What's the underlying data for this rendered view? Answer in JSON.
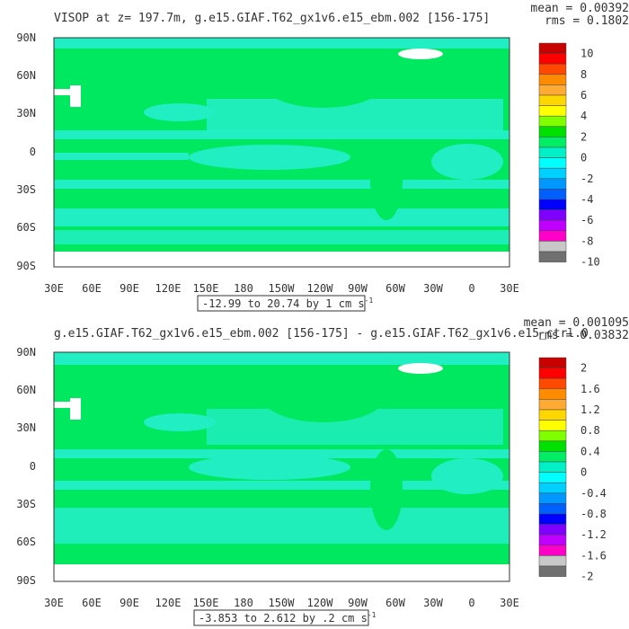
{
  "panels": [
    {
      "title": "VISOP at z= 197.7m, g.e15.GIAF.T62_gx1v6.e15_ebm.002 [156-175]",
      "stats_mean": "mean = 0.00392",
      "stats_rms": "rms = 0.1802",
      "range_text": "-12.99 to 20.74 by 1 cm s",
      "range_exponent": "-1",
      "colorbar_labels": [
        "10",
        "8",
        "6",
        "4",
        "2",
        "0",
        "-2",
        "-4",
        "-6",
        "-8",
        "-10"
      ]
    },
    {
      "title": "g.e15.GIAF.T62_gx1v6.e15_ebm.002 [156-175] - g.e15.GIAF.T62_gx1v6.e15_ctrl.0",
      "stats_mean": "mean = 0.001095",
      "stats_rms": "rms = 0.03832",
      "range_text": "-3.853 to 2.612 by .2 cm s",
      "range_exponent": "-1",
      "colorbar_labels": [
        "2",
        "1.6",
        "1.2",
        "0.8",
        "0.4",
        "0",
        "-0.4",
        "-0.8",
        "-1.2",
        "-1.6",
        "-2"
      ]
    }
  ],
  "lat_labels": [
    "90N",
    "60N",
    "30N",
    "0",
    "30S",
    "60S",
    "90S"
  ],
  "lon_labels": [
    "30E",
    "60E",
    "90E",
    "120E",
    "150E",
    "180",
    "150W",
    "120W",
    "90W",
    "60W",
    "30W",
    "0",
    "30E"
  ],
  "colorbar_colors": [
    "#c80000",
    "#ff0000",
    "#ff4800",
    "#ff8c00",
    "#ffaa33",
    "#ffd700",
    "#ffff00",
    "#80ff00",
    "#00e000",
    "#00ee66",
    "#00f0c8",
    "#00ffff",
    "#00d0ff",
    "#0098ff",
    "#0060ff",
    "#0000ff",
    "#8000ff",
    "#c000ff",
    "#ff00c8",
    "#c8c8c8",
    "#707070"
  ],
  "map_colors": {
    "base": "#00e860",
    "cyan": "#22eec4",
    "land_mask": "#ffffff",
    "missing": "#ffffff"
  }
}
